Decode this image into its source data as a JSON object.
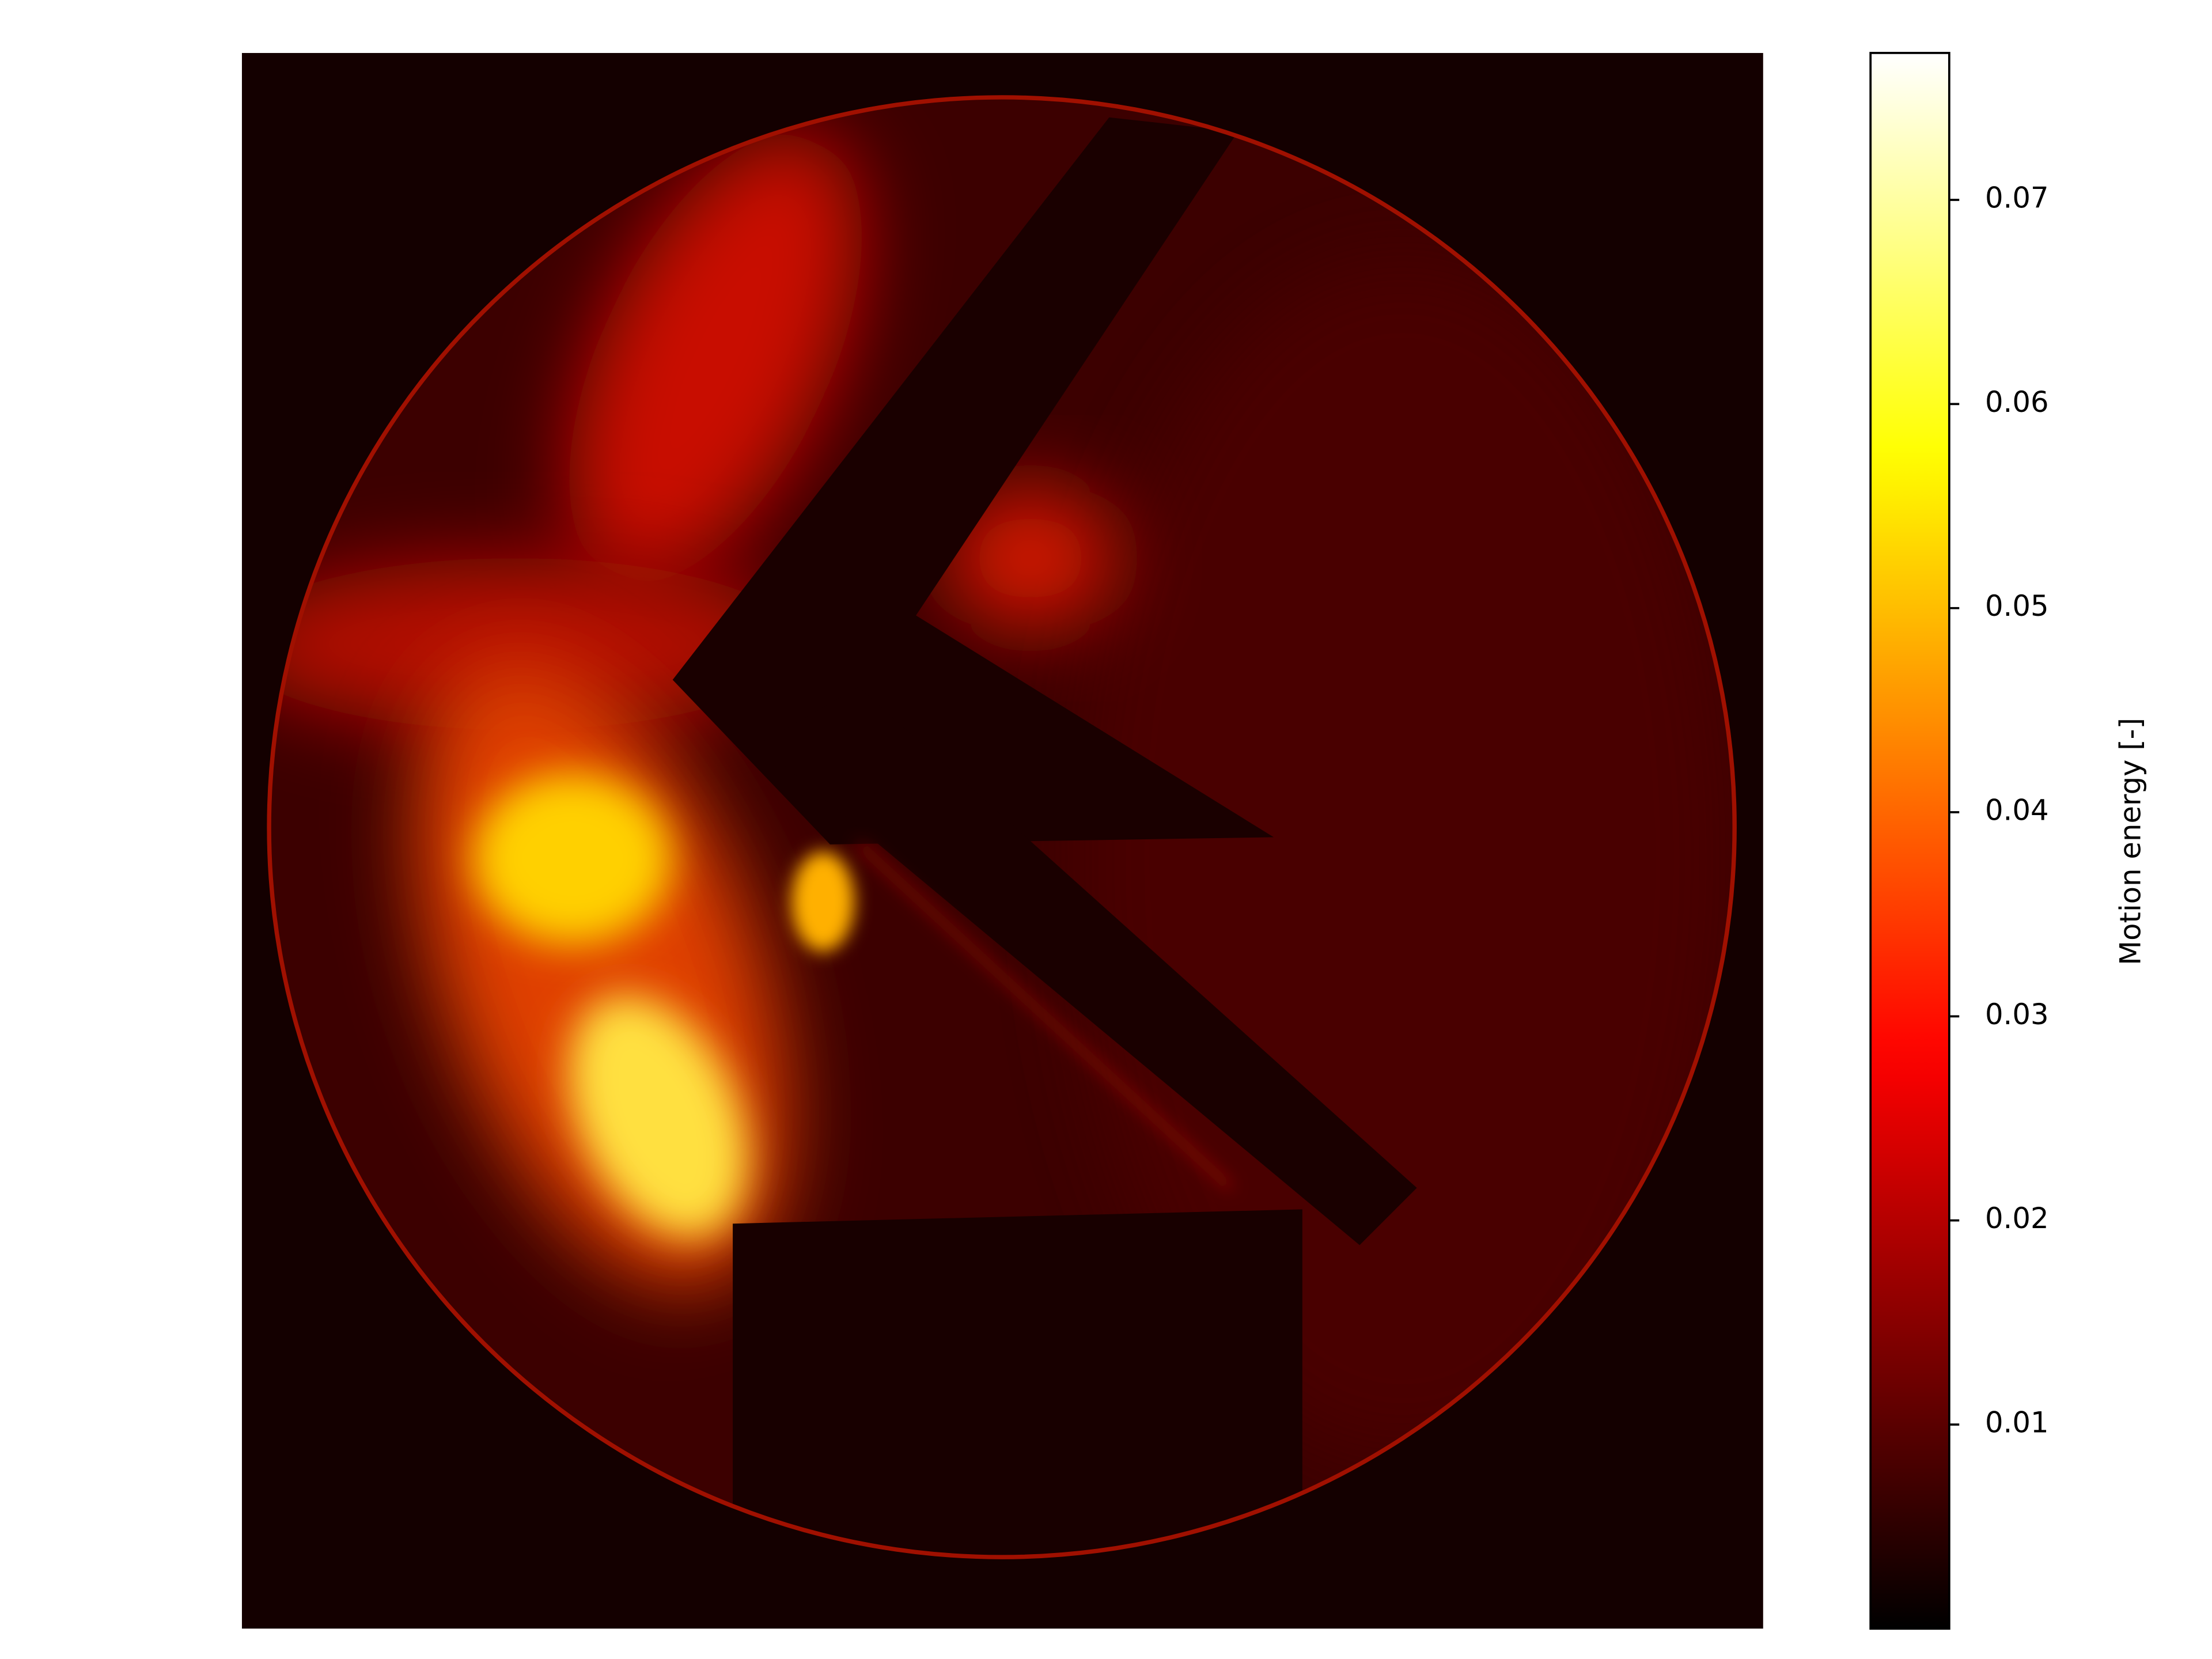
{
  "chart_data": {
    "type": "heatmap",
    "colormap": "hot",
    "colorbar": {
      "label": "Motion energy [-]",
      "lim": [
        0,
        0.0772
      ],
      "ticks": [
        0.01,
        0.02,
        0.03,
        0.04,
        0.05,
        0.06,
        0.07
      ]
    }
  }
}
